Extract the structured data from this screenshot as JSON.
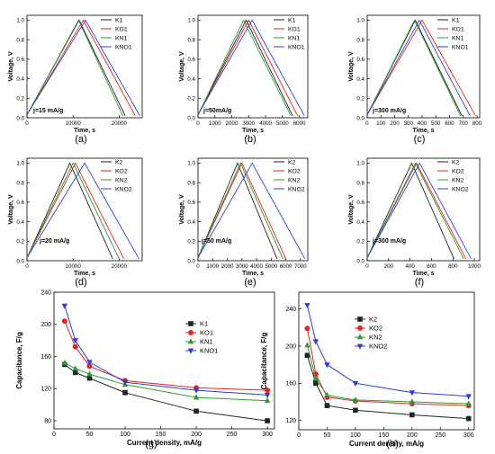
{
  "colors": {
    "K": "#222222",
    "KO": "#e8231d",
    "KN": "#2e9a33",
    "KNO": "#2a3fd6"
  },
  "chart_data": [
    {
      "id": "a",
      "label": "(a)",
      "type": "line",
      "annotation": "j=15 mA/g",
      "xlabel": "Time, s",
      "ylabel": "Voltage, V",
      "xlim": [
        0,
        25000
      ],
      "ylim": [
        0,
        1.05
      ],
      "xticks": [
        0,
        10000,
        20000
      ],
      "xtick_labels": [
        "0",
        "10000",
        "20000"
      ],
      "yticks": [
        0,
        0.2,
        0.4,
        0.6,
        0.8,
        1.0
      ],
      "ytick_labels": [
        "0.0",
        "0.2",
        "0.4",
        "0.6",
        "0.8",
        "1.0"
      ],
      "series": [
        {
          "name": "K1",
          "color_key": "K",
          "x": [
            0,
            11300,
            21300
          ],
          "y": [
            0.03,
            1.0,
            0.02
          ]
        },
        {
          "name": "KO1",
          "color_key": "KO",
          "x": [
            0,
            12200,
            23500
          ],
          "y": [
            0.03,
            1.0,
            0.02
          ]
        },
        {
          "name": "KN1",
          "color_key": "KN",
          "x": [
            0,
            11200,
            20800
          ],
          "y": [
            0.03,
            1.0,
            0.02
          ]
        },
        {
          "name": "KNO1",
          "color_key": "KNO",
          "x": [
            0,
            12700,
            24500
          ],
          "y": [
            0.03,
            1.0,
            0.02
          ]
        }
      ]
    },
    {
      "id": "b",
      "label": "(b)",
      "type": "line",
      "annotation": "j=50mA/g",
      "xlabel": "Time, s",
      "ylabel": "Voltage, V",
      "xlim": [
        0,
        6500
      ],
      "ylim": [
        0,
        1.05
      ],
      "xticks": [
        0,
        1000,
        2000,
        3000,
        4000,
        5000,
        6000
      ],
      "xtick_labels": [
        "0",
        "1000",
        "2000",
        "3000",
        "4000",
        "5000",
        "6000"
      ],
      "yticks": [
        0,
        0.2,
        0.4,
        0.6,
        0.8,
        1.0
      ],
      "ytick_labels": [
        "0.0",
        "0.2",
        "0.4",
        "0.6",
        "0.8",
        "1.0"
      ],
      "series": [
        {
          "name": "K1",
          "color_key": "K",
          "x": [
            0,
            2850,
            5600
          ],
          "y": [
            0.03,
            1.0,
            0.02
          ]
        },
        {
          "name": "KO1",
          "color_key": "KO",
          "x": [
            0,
            3000,
            5900
          ],
          "y": [
            0.03,
            1.0,
            0.02
          ]
        },
        {
          "name": "KN1",
          "color_key": "KN",
          "x": [
            0,
            2700,
            5500
          ],
          "y": [
            0.03,
            1.0,
            0.02
          ]
        },
        {
          "name": "KNO1",
          "color_key": "KNO",
          "x": [
            0,
            3200,
            6300
          ],
          "y": [
            0.03,
            1.0,
            0.02
          ]
        }
      ]
    },
    {
      "id": "c",
      "label": "(c)",
      "type": "line",
      "annotation": "j=300 mA/g",
      "xlabel": "Time, s",
      "ylabel": "Voltage, V",
      "xlim": [
        0,
        820
      ],
      "ylim": [
        0,
        1.05
      ],
      "xticks": [
        0,
        100,
        200,
        300,
        400,
        500,
        600,
        700,
        800
      ],
      "xtick_labels": [
        "0",
        "100",
        "200",
        "300",
        "400",
        "500",
        "600",
        "700",
        "800"
      ],
      "yticks": [
        0,
        0.2,
        0.4,
        0.6,
        0.8,
        1.0
      ],
      "ytick_labels": [
        "0.0",
        "0.2",
        "0.4",
        "0.6",
        "0.8",
        "1.0"
      ],
      "series": [
        {
          "name": "K1",
          "color_key": "K",
          "x": [
            0,
            350,
            690
          ],
          "y": [
            0.03,
            1.0,
            0.02
          ]
        },
        {
          "name": "KO1",
          "color_key": "KO",
          "x": [
            0,
            400,
            790
          ],
          "y": [
            0.03,
            1.0,
            0.02
          ]
        },
        {
          "name": "KN1",
          "color_key": "KN",
          "x": [
            0,
            345,
            680
          ],
          "y": [
            0.03,
            1.0,
            0.02
          ]
        },
        {
          "name": "KNO1",
          "color_key": "KNO",
          "x": [
            0,
            380,
            750
          ],
          "y": [
            0.03,
            1.0,
            0.02
          ]
        }
      ]
    },
    {
      "id": "d",
      "label": "(d)",
      "type": "line",
      "annotation": "j=20 mA/g",
      "xlabel": "Time, s",
      "ylabel": "Voltage, V",
      "xlim": [
        0,
        25000
      ],
      "ylim": [
        0,
        1.05
      ],
      "xticks": [
        0,
        10000,
        20000
      ],
      "xtick_labels": [
        "0",
        "10000",
        "20000"
      ],
      "yticks": [
        0,
        0.2,
        0.4,
        0.6,
        0.8,
        1.0
      ],
      "ytick_labels": [
        "0.0",
        "0.2",
        "0.4",
        "0.6",
        "0.8",
        "1.0"
      ],
      "series": [
        {
          "name": "K2",
          "color_key": "K",
          "x": [
            0,
            9300,
            18600
          ],
          "y": [
            0.03,
            1.0,
            0.02
          ]
        },
        {
          "name": "KO2",
          "color_key": "KO",
          "x": [
            0,
            10500,
            21000
          ],
          "y": [
            0.03,
            1.0,
            0.02
          ]
        },
        {
          "name": "KN2",
          "color_key": "KN",
          "x": [
            0,
            10000,
            20000
          ],
          "y": [
            0.03,
            1.0,
            0.02
          ]
        },
        {
          "name": "KNO2",
          "color_key": "KNO",
          "x": [
            0,
            12500,
            24300
          ],
          "y": [
            0.03,
            1.0,
            0.02
          ]
        }
      ]
    },
    {
      "id": "e",
      "label": "(e)",
      "type": "line",
      "annotation": "j=50 mA/g",
      "xlabel": "Time, s",
      "ylabel": "Voltage, V",
      "xlim": [
        0,
        7500
      ],
      "ylim": [
        0,
        1.05
      ],
      "xticks": [
        0,
        1000,
        2000,
        3000,
        4000,
        5000,
        6000,
        7000
      ],
      "xtick_labels": [
        "0",
        "1000",
        "2000",
        "3000",
        "4000",
        "5000",
        "6000",
        "7000"
      ],
      "yticks": [
        0,
        0.2,
        0.4,
        0.6,
        0.8,
        1.0
      ],
      "ytick_labels": [
        "0.0",
        "0.2",
        "0.4",
        "0.6",
        "0.8",
        "1.0"
      ],
      "series": [
        {
          "name": "K2",
          "color_key": "K",
          "x": [
            0,
            2700,
            5400
          ],
          "y": [
            0.03,
            1.0,
            0.02
          ]
        },
        {
          "name": "KO2",
          "color_key": "KO",
          "x": [
            0,
            3000,
            6000
          ],
          "y": [
            0.03,
            1.0,
            0.02
          ]
        },
        {
          "name": "KN2",
          "color_key": "KN",
          "x": [
            0,
            2900,
            5800
          ],
          "y": [
            0.03,
            1.0,
            0.02
          ]
        },
        {
          "name": "KNO2",
          "color_key": "KNO",
          "x": [
            0,
            3700,
            7300
          ],
          "y": [
            0.03,
            1.0,
            0.02
          ]
        }
      ]
    },
    {
      "id": "f",
      "label": "(f)",
      "type": "line",
      "annotation": "j=300 mA/g",
      "xlabel": "Time, s",
      "ylabel": "Voltage, V",
      "xlim": [
        0,
        1050
      ],
      "ylim": [
        0,
        1.05
      ],
      "xticks": [
        0,
        200,
        400,
        600,
        800,
        1000
      ],
      "xtick_labels": [
        "0",
        "200",
        "400",
        "600",
        "800",
        "1000"
      ],
      "yticks": [
        0,
        0.2,
        0.4,
        0.6,
        0.8,
        1.0
      ],
      "ytick_labels": [
        "0.0",
        "0.2",
        "0.4",
        "0.6",
        "0.8",
        "1.0"
      ],
      "series": [
        {
          "name": "K2",
          "color_key": "K",
          "x": [
            0,
            415,
            810
          ],
          "y": [
            0.03,
            1.0,
            0.02
          ]
        },
        {
          "name": "KO2",
          "color_key": "KO",
          "x": [
            0,
            460,
            920
          ],
          "y": [
            0.03,
            1.0,
            0.02
          ]
        },
        {
          "name": "KN2",
          "color_key": "KN",
          "x": [
            0,
            450,
            900
          ],
          "y": [
            0.03,
            1.0,
            0.02
          ]
        },
        {
          "name": "KNO2",
          "color_key": "KNO",
          "x": [
            0,
            490,
            970
          ],
          "y": [
            0.03,
            1.0,
            0.02
          ]
        }
      ]
    },
    {
      "id": "g",
      "label": "(g)",
      "type": "line",
      "annotation": "",
      "xlabel": "Current density, mA/g",
      "ylabel": "Capacitance, F/g",
      "xlim": [
        0,
        310
      ],
      "ylim": [
        70,
        240
      ],
      "xticks": [
        0,
        50,
        100,
        150,
        200,
        250,
        300
      ],
      "xtick_labels": [
        "0",
        "50",
        "100",
        "150",
        "200",
        "250",
        "300"
      ],
      "yticks": [
        80,
        120,
        160,
        200,
        240
      ],
      "ytick_labels": [
        "80",
        "120",
        "160",
        "200",
        "240"
      ],
      "markers": true,
      "series": [
        {
          "name": "K1",
          "color_key": "K",
          "marker": "square",
          "x": [
            15,
            30,
            50,
            100,
            200,
            300
          ],
          "y": [
            150,
            140,
            133,
            115,
            92,
            80
          ]
        },
        {
          "name": "KO1",
          "color_key": "KO",
          "marker": "circle",
          "x": [
            15,
            30,
            50,
            100,
            200,
            300
          ],
          "y": [
            204,
            172,
            148,
            130,
            121,
            118
          ]
        },
        {
          "name": "KN1",
          "color_key": "KN",
          "marker": "triangle-up",
          "x": [
            15,
            30,
            50,
            100,
            200,
            300
          ],
          "y": [
            152,
            145,
            138,
            125,
            109,
            105
          ]
        },
        {
          "name": "KNO1",
          "color_key": "KNO",
          "marker": "triangle-down",
          "x": [
            15,
            30,
            50,
            100,
            200,
            300
          ],
          "y": [
            223,
            180,
            153,
            128,
            118,
            112
          ]
        }
      ]
    },
    {
      "id": "h",
      "label": "(h)",
      "type": "line",
      "annotation": "",
      "xlabel": "Current density, mA/g",
      "ylabel": "Capacitance, F/g",
      "xlim": [
        0,
        310
      ],
      "ylim": [
        110,
        258
      ],
      "xticks": [
        0,
        50,
        100,
        150,
        200,
        250,
        300
      ],
      "xtick_labels": [
        "0",
        "50",
        "100",
        "150",
        "200",
        "250",
        "300"
      ],
      "yticks": [
        120,
        160,
        200,
        240
      ],
      "ytick_labels": [
        "120",
        "160",
        "200",
        "240"
      ],
      "markers": true,
      "series": [
        {
          "name": "K2",
          "color_key": "K",
          "marker": "square",
          "x": [
            15,
            30,
            50,
            100,
            200,
            300
          ],
          "y": [
            190,
            160,
            136,
            131,
            126,
            122
          ]
        },
        {
          "name": "KO2",
          "color_key": "KO",
          "marker": "circle",
          "x": [
            15,
            30,
            50,
            100,
            200,
            300
          ],
          "y": [
            219,
            170,
            145,
            141,
            138,
            136
          ]
        },
        {
          "name": "KN2",
          "color_key": "KN",
          "marker": "triangle-up",
          "x": [
            15,
            30,
            50,
            100,
            200,
            300
          ],
          "y": [
            201,
            165,
            147,
            142,
            140,
            138
          ]
        },
        {
          "name": "KNO2",
          "color_key": "KNO",
          "marker": "triangle-down",
          "x": [
            15,
            30,
            50,
            100,
            200,
            300
          ],
          "y": [
            244,
            205,
            180,
            160,
            150,
            146
          ]
        }
      ]
    }
  ]
}
